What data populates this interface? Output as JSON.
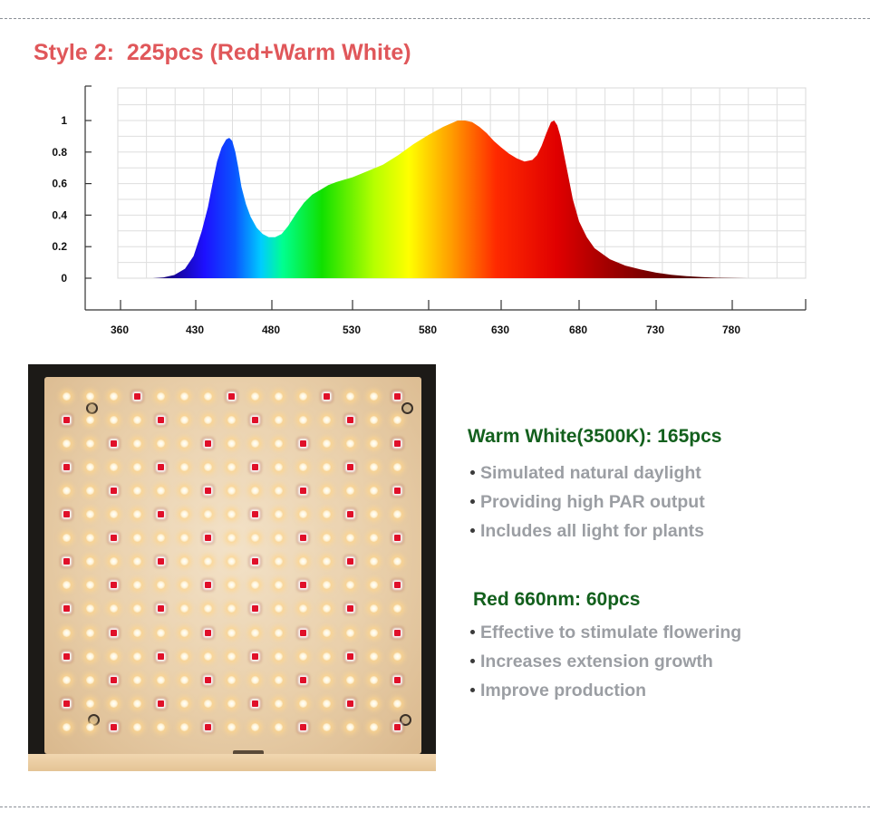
{
  "title": "Style 2:  225pcs (Red+Warm White)",
  "chart_data": {
    "type": "area",
    "title": "",
    "xlabel": "",
    "ylabel": "",
    "x_ticks": [
      360,
      430,
      480,
      530,
      580,
      630,
      680,
      730,
      780
    ],
    "y_ticks": [
      0,
      0.2,
      0.4,
      0.6,
      0.8,
      1
    ],
    "y_tick_labels": [
      "0",
      "0.2",
      "0.4",
      "0.6",
      "0.8",
      "1"
    ],
    "xlim": [
      360,
      800
    ],
    "ylim": [
      0,
      1
    ],
    "grid": true,
    "series": [
      {
        "x": [
          390,
          400,
          410,
          420,
          428,
          434,
          438,
          441,
          444,
          447,
          450,
          452,
          454,
          456,
          458,
          460,
          463,
          466,
          470,
          474,
          478,
          482,
          486,
          490,
          495,
          500,
          505,
          510,
          515,
          520,
          530,
          540,
          550,
          560,
          570,
          580,
          590,
          595,
          600,
          605,
          610,
          615,
          620,
          625,
          630,
          635,
          640,
          645,
          650,
          653,
          656,
          659,
          662,
          664,
          666,
          668,
          670,
          673,
          676,
          680,
          685,
          690,
          700,
          710,
          720,
          730,
          740,
          750,
          760,
          770,
          780,
          790,
          800
        ],
        "y": [
          0,
          0.005,
          0.02,
          0.06,
          0.14,
          0.3,
          0.45,
          0.6,
          0.74,
          0.83,
          0.88,
          0.89,
          0.87,
          0.8,
          0.7,
          0.58,
          0.47,
          0.39,
          0.32,
          0.28,
          0.26,
          0.26,
          0.28,
          0.33,
          0.41,
          0.48,
          0.53,
          0.56,
          0.59,
          0.61,
          0.64,
          0.68,
          0.72,
          0.78,
          0.85,
          0.91,
          0.96,
          0.98,
          1.0,
          1.0,
          0.99,
          0.96,
          0.92,
          0.87,
          0.83,
          0.79,
          0.76,
          0.74,
          0.75,
          0.78,
          0.84,
          0.92,
          0.99,
          1.0,
          0.97,
          0.9,
          0.8,
          0.65,
          0.5,
          0.36,
          0.26,
          0.19,
          0.12,
          0.08,
          0.055,
          0.035,
          0.022,
          0.013,
          0.007,
          0.003,
          0.001,
          0.0,
          0.0
        ]
      }
    ]
  },
  "led_panel": {
    "total_leds": 225,
    "grid": "15 x 15",
    "red_leds": 60,
    "warm_white_leds": 165
  },
  "warm_white": {
    "title": "Warm White(3500K): 165pcs",
    "items": [
      "Simulated natural daylight",
      "Providing high PAR output",
      "Includes all light for plants"
    ]
  },
  "red": {
    "title": "Red 660nm: 60pcs",
    "items": [
      "Effective to stimulate flowering",
      "Increases extension growth",
      "Improve production"
    ]
  },
  "colors": {
    "title": "#e0575a",
    "spec_title": "#13601d",
    "spec_text": "#9b9ea3",
    "red_led": "#e0102a",
    "warm_white_led": "#ffe6b8"
  }
}
